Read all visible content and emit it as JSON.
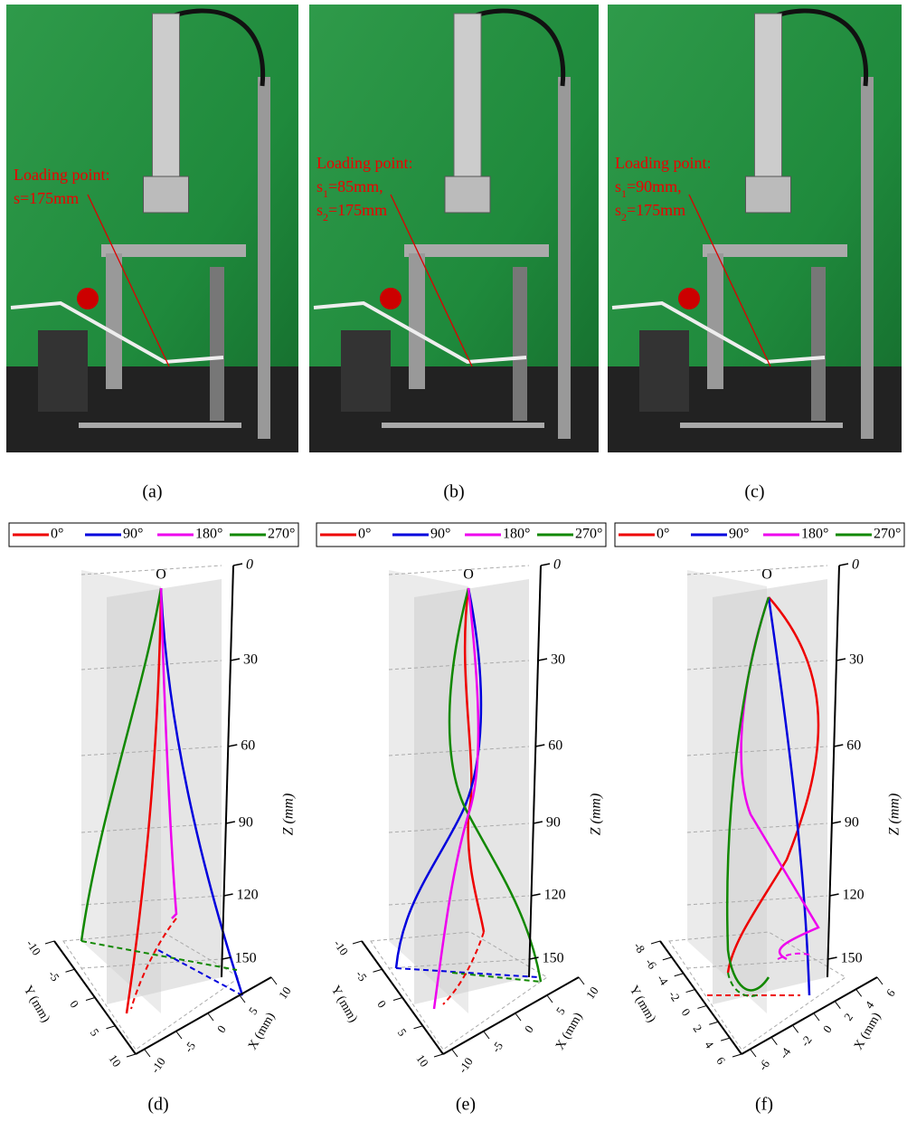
{
  "photos": [
    {
      "caption": "(a)",
      "annotation": [
        [
          "Loading point:"
        ],
        [
          "s=175mm"
        ]
      ]
    },
    {
      "caption": "(b)",
      "annotation": [
        [
          "Loading point:"
        ],
        [
          "s",
          "1",
          "=85mm,"
        ],
        [
          "s",
          "2",
          "=175mm"
        ]
      ]
    },
    {
      "caption": "(c)",
      "annotation": [
        [
          "Loading point:"
        ],
        [
          "s",
          "1",
          "=90mm,"
        ],
        [
          "s",
          "2",
          "=175mm"
        ]
      ]
    }
  ],
  "plots": [
    {
      "caption": "(d)",
      "legend": [
        "0°",
        "90°",
        "180°",
        "270°"
      ],
      "origin": "O",
      "z_ticks": [
        "0",
        "30",
        "60",
        "90",
        "120",
        "150"
      ],
      "z_label": "Z (mm)",
      "y_label": "Y (mm)",
      "y_ticks": [
        "-10",
        "-5",
        "0",
        "5",
        "10"
      ],
      "x_label": "X (mm)",
      "x_ticks": [
        "10",
        "5",
        "0",
        "-5",
        "-10"
      ]
    },
    {
      "caption": "(e)",
      "legend": [
        "0°",
        "90°",
        "180°",
        "270°"
      ],
      "origin": "O",
      "z_ticks": [
        "0",
        "30",
        "60",
        "90",
        "120",
        "150"
      ],
      "z_label": "Z (mm)",
      "y_label": "Y (mm)",
      "y_ticks": [
        "-10",
        "-5",
        "0",
        "5",
        "10"
      ],
      "x_label": "X (mm)",
      "x_ticks": [
        "10",
        "5",
        "0",
        "-5",
        "-10"
      ]
    },
    {
      "caption": "(f)",
      "legend": [
        "0°",
        "90°",
        "180°",
        "270°"
      ],
      "origin": "O",
      "z_ticks": [
        "0",
        "30",
        "60",
        "90",
        "120",
        "150"
      ],
      "z_label": "Z (mm)",
      "y_label": "Y (mm)",
      "y_ticks": [
        "-8",
        "-6",
        "-4",
        "-2",
        "0",
        "2",
        "4",
        "6"
      ],
      "x_label": "X (mm)",
      "x_ticks": [
        "6",
        "4",
        "2",
        "0",
        "-2",
        "-4",
        "-6"
      ]
    }
  ]
}
